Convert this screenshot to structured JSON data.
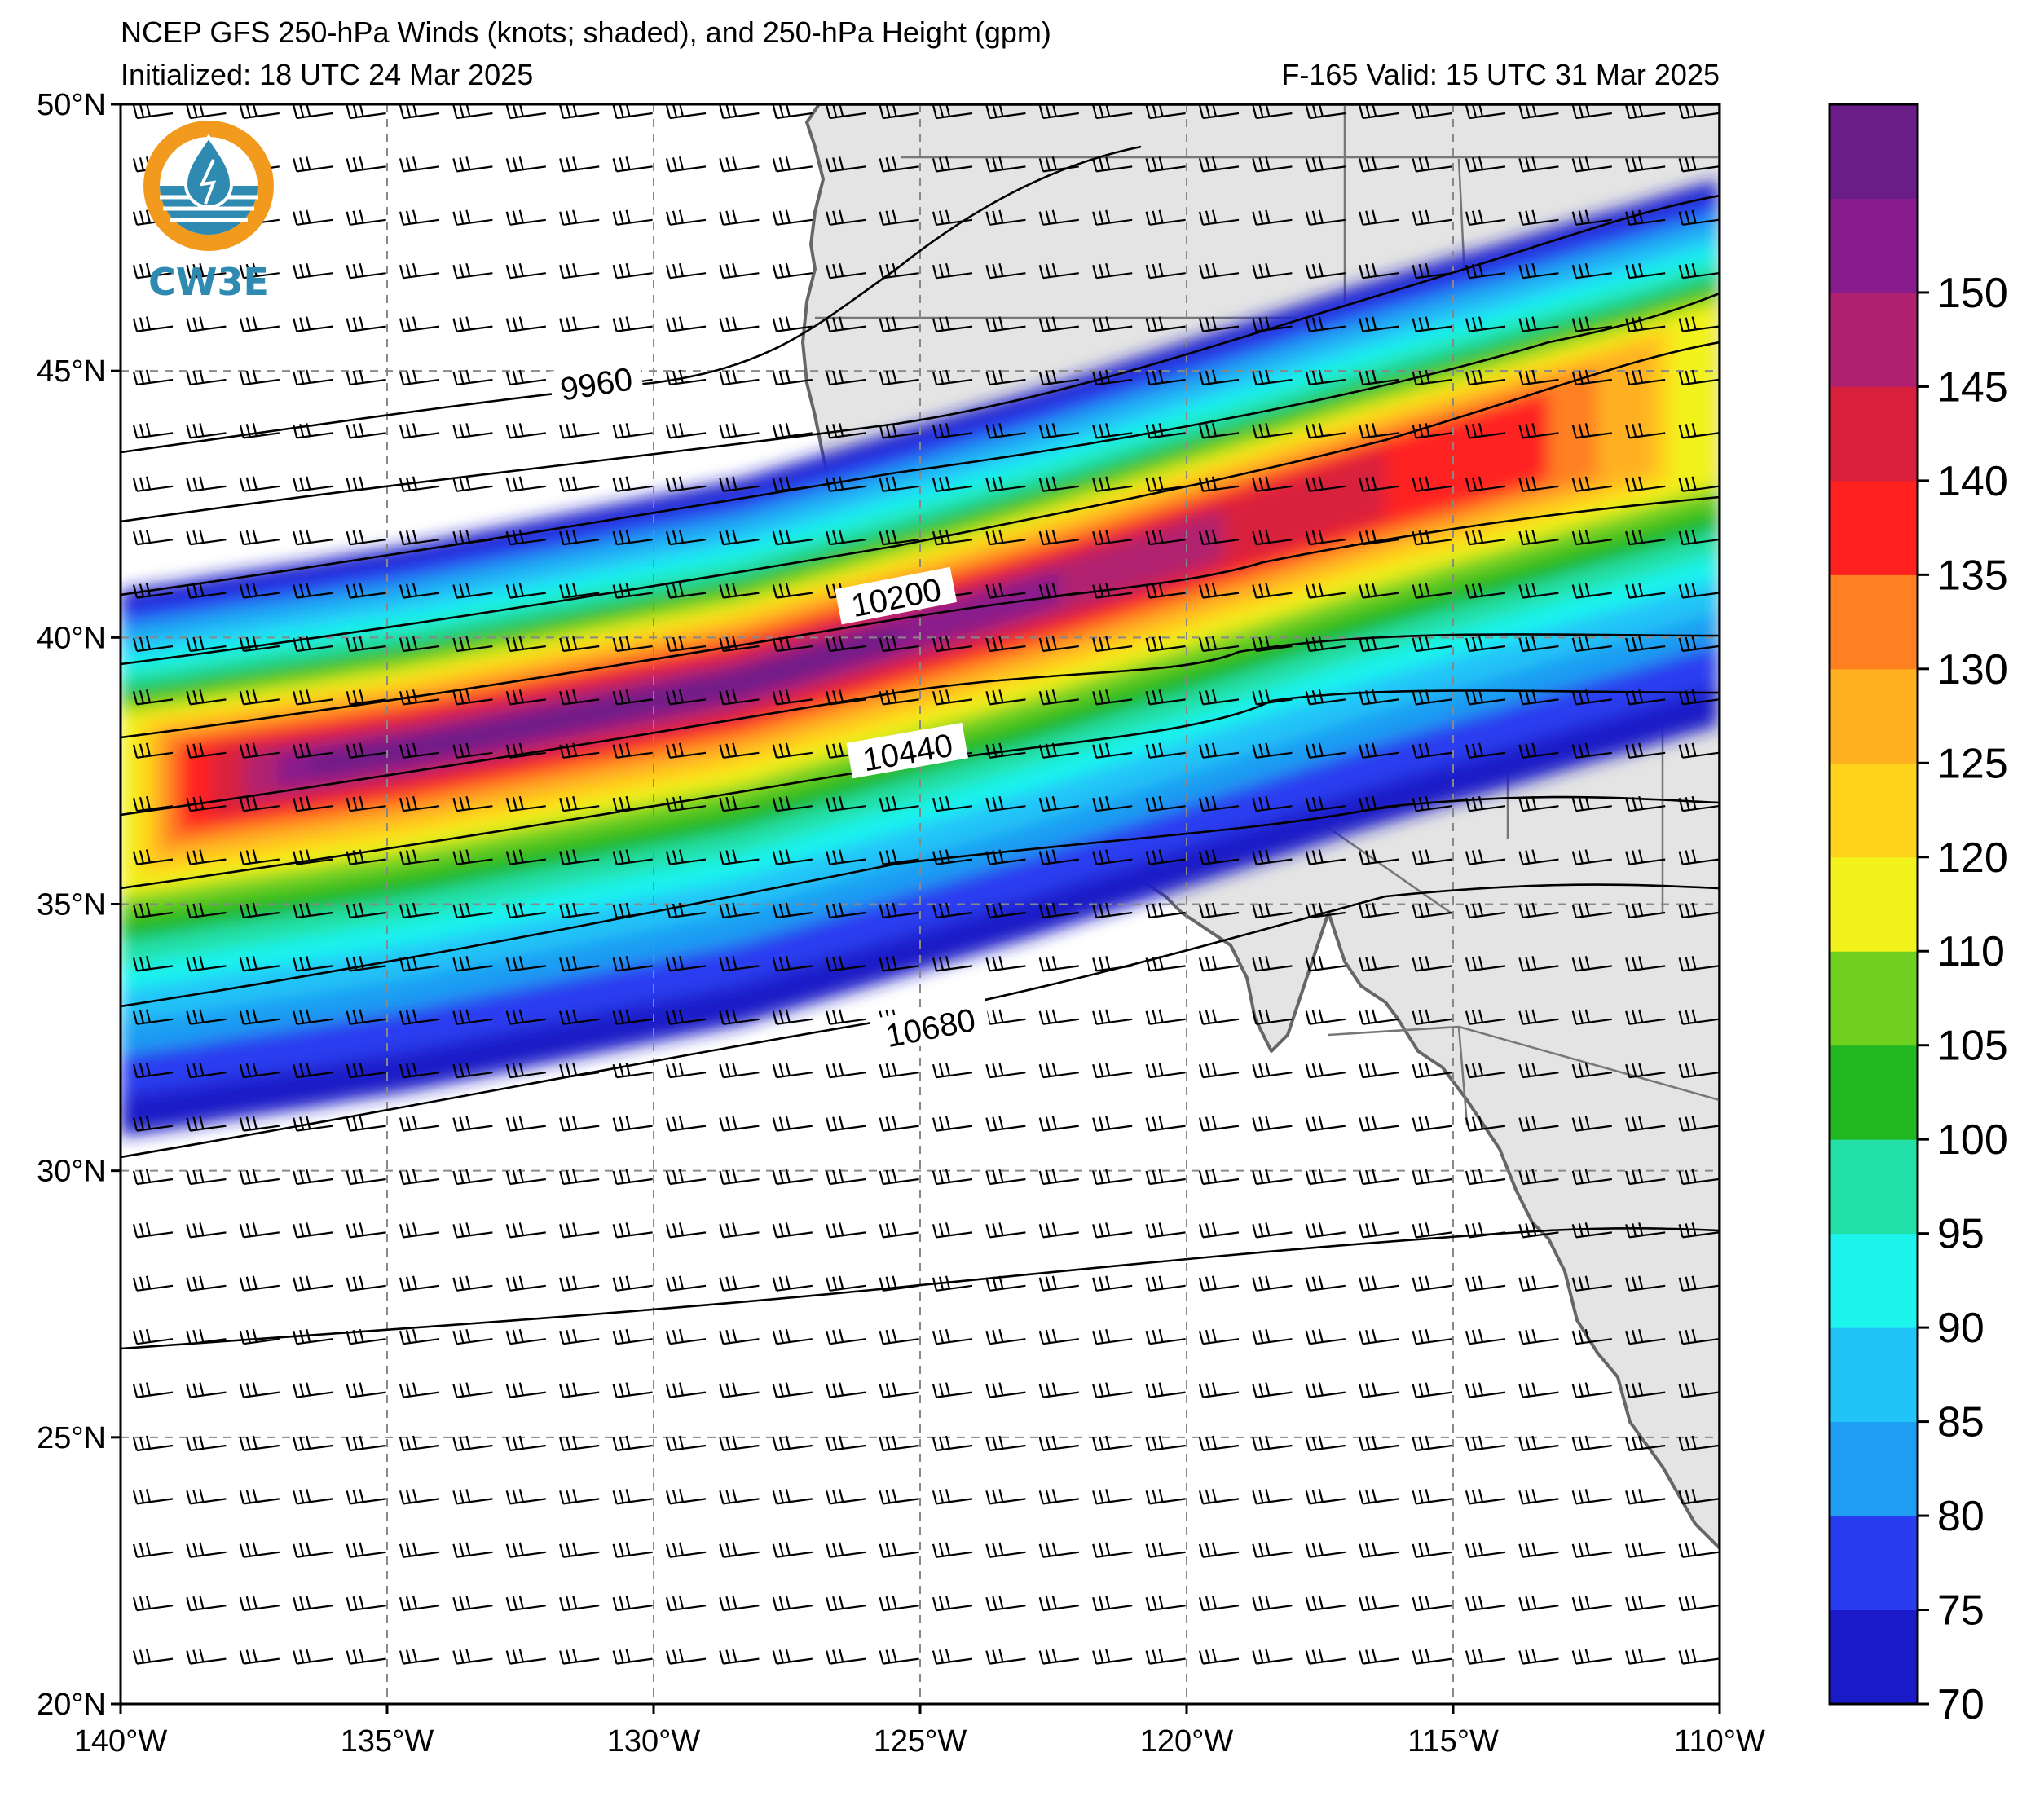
{
  "title": {
    "line1": "NCEP GFS 250-hPa Winds (knots; shaded), and 250-hPa Height (gpm)",
    "initialized": "Initialized: 18 UTC 24 Mar 2025",
    "valid": "F-165  Valid: 15 UTC 31 Mar 2025"
  },
  "logo": {
    "text": "CW3E"
  },
  "map": {
    "lon_range": [
      -140,
      -110
    ],
    "lat_range": [
      20,
      50
    ],
    "lon_ticks": [
      "140°W",
      "135°W",
      "130°W",
      "125°W",
      "120°W",
      "115°W",
      "110°W"
    ],
    "lat_ticks": [
      "20°N",
      "25°N",
      "30°N",
      "35°N",
      "40°N",
      "45°N",
      "50°N"
    ],
    "land_color": "#e4e4e4",
    "ocean_color": "#ffffff"
  },
  "colorbar": {
    "levels": [
      70,
      75,
      80,
      85,
      90,
      95,
      100,
      105,
      110,
      120,
      125,
      130,
      135,
      140,
      145,
      150
    ],
    "labels": [
      "70",
      "75",
      "80",
      "85",
      "90",
      "95",
      "100",
      "105",
      "110",
      "120",
      "125",
      "130",
      "135",
      "140",
      "145",
      "150"
    ],
    "colors": [
      "#1a1ac8",
      "#2a3cf0",
      "#1e9df2",
      "#22c4f8",
      "#1ef4ee",
      "#22e0a8",
      "#22b822",
      "#70d020",
      "#f2f21c",
      "#ffd21c",
      "#ffb020",
      "#ff8020",
      "#ff2020",
      "#d8203c",
      "#b02070",
      "#881c8c",
      "#6a1c88"
    ]
  },
  "height_contours": [
    {
      "label": "9960"
    },
    {
      "label": "10200"
    },
    {
      "label": "10440"
    },
    {
      "label": "10680"
    }
  ]
}
